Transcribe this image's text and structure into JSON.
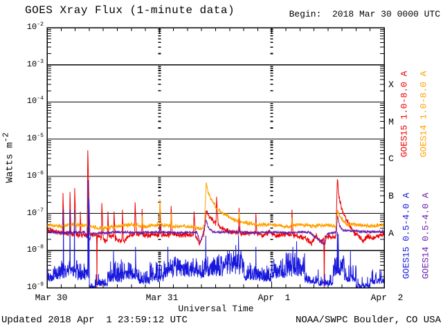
{
  "header": {
    "title": "GOES Xray Flux (1-minute data)",
    "begin_label": "Begin:  2018 Mar 30 0000 UTC"
  },
  "footer": {
    "updated": "Updated 2018 Apr  1 23:59:12 UTC",
    "source": "NOAA/SWPC Boulder, CO USA"
  },
  "colors": {
    "frame": "#000000",
    "background": "#ffffff",
    "goes15_long": "#ee0000",
    "goes14_long": "#ffa000",
    "goes15_short": "#1818dd",
    "goes14_short": "#691eaa"
  },
  "chart_data": {
    "type": "line",
    "title": "GOES Xray Flux (1-minute data)",
    "xlabel": "Universal Time",
    "ylabel": {
      "text": "Watts m",
      "exp": "-2"
    },
    "x_range_hours": [
      0,
      72
    ],
    "x_minor_tick_hours": 3,
    "y_log_range": [
      -9,
      -2
    ],
    "grid": {
      "horizontal_decade_lines": true,
      "vertical_day_lines": "log-dashed"
    },
    "legend_position": "right-rotated",
    "y_ticks": [
      {
        "base": "10",
        "exp": "-2"
      },
      {
        "base": "10",
        "exp": "-3"
      },
      {
        "base": "10",
        "exp": "-4"
      },
      {
        "base": "10",
        "exp": "-5"
      },
      {
        "base": "10",
        "exp": "-6"
      },
      {
        "base": "10",
        "exp": "-7"
      },
      {
        "base": "10",
        "exp": "-8"
      },
      {
        "base": "10",
        "exp": "-9"
      }
    ],
    "x_ticks": [
      {
        "label": "Mar 30",
        "hour": 0
      },
      {
        "label": "Mar 31",
        "hour": 24
      },
      {
        "label": "Apr  1",
        "hour": 48
      },
      {
        "label": "Apr  2",
        "hour": 72
      }
    ],
    "flux_classes": [
      {
        "label": "X",
        "log_center": -3.5
      },
      {
        "label": "M",
        "log_center": -4.5
      },
      {
        "label": "C",
        "log_center": -5.5
      },
      {
        "label": "B",
        "log_center": -6.5
      },
      {
        "label": "A",
        "log_center": -7.5
      }
    ],
    "series": [
      {
        "name": "GOES15 1.0-8.0 A",
        "color": "#ee0000",
        "kind": "keypoint",
        "noise_log": 0.09,
        "baseline": [
          [
            0,
            -7.45
          ],
          [
            2,
            -7.5
          ],
          [
            5,
            -7.55
          ],
          [
            8,
            -7.6
          ],
          [
            9.5,
            -7.55
          ],
          [
            11,
            -7.6
          ],
          [
            12.5,
            -7.75
          ],
          [
            13.5,
            -7.6
          ],
          [
            15,
            -7.7
          ],
          [
            16.5,
            -7.75
          ],
          [
            17.5,
            -7.6
          ],
          [
            19,
            -7.55
          ],
          [
            21,
            -7.6
          ],
          [
            23,
            -7.55
          ],
          [
            25,
            -7.6
          ],
          [
            27,
            -7.55
          ],
          [
            28.5,
            -7.6
          ],
          [
            30,
            -7.55
          ],
          [
            31.5,
            -7.6
          ],
          [
            32.6,
            -7.8
          ],
          [
            33.3,
            -7.6
          ],
          [
            33.5,
            -7.6
          ],
          [
            34.0,
            -6.97
          ],
          [
            35,
            -7.15
          ],
          [
            36.5,
            -7.3
          ],
          [
            38,
            -7.45
          ],
          [
            40,
            -7.5
          ],
          [
            42,
            -7.55
          ],
          [
            44,
            -7.5
          ],
          [
            46,
            -7.6
          ],
          [
            47.5,
            -7.5
          ],
          [
            49,
            -7.6
          ],
          [
            51,
            -7.55
          ],
          [
            53,
            -7.6
          ],
          [
            55,
            -7.65
          ],
          [
            56.5,
            -7.8
          ],
          [
            57.5,
            -7.6
          ],
          [
            58.5,
            -7.75
          ],
          [
            60,
            -7.6
          ],
          [
            61,
            -7.65
          ],
          [
            61.7,
            -7.6
          ],
          [
            62.0,
            -6.03
          ],
          [
            62.3,
            -6.5
          ],
          [
            62.8,
            -6.8
          ],
          [
            63.5,
            -7.05
          ],
          [
            64.5,
            -7.3
          ],
          [
            65.5,
            -7.5
          ],
          [
            66.5,
            -7.6
          ],
          [
            67.5,
            -7.75
          ],
          [
            68.5,
            -7.6
          ],
          [
            69.5,
            -7.7
          ],
          [
            70.5,
            -7.6
          ],
          [
            72,
            -7.55
          ]
        ],
        "events": [
          [
            3.4,
            -6.45,
            0.1,
            0.25
          ],
          [
            4.9,
            -6.42,
            0.1,
            0.2
          ],
          [
            5.9,
            -6.32,
            0.1,
            0.3
          ],
          [
            7.1,
            -6.95,
            0.08,
            0.15
          ],
          [
            8.7,
            -5.3,
            0.15,
            0.45
          ],
          [
            10.65,
            -9.0,
            0.06,
            0.06
          ],
          [
            11.7,
            -6.72,
            0.1,
            0.3
          ],
          [
            13.0,
            -6.95,
            0.08,
            0.2
          ],
          [
            14.3,
            -6.95,
            0.1,
            0.25
          ],
          [
            16.1,
            -6.9,
            0.08,
            0.2
          ],
          [
            18.8,
            -6.7,
            0.1,
            0.3
          ],
          [
            20.3,
            -6.88,
            0.08,
            0.2
          ],
          [
            24.1,
            -6.65,
            0.12,
            0.3
          ],
          [
            26.5,
            -6.8,
            0.1,
            0.25
          ],
          [
            31.4,
            -6.95,
            0.15,
            0.3
          ],
          [
            36.2,
            -6.55,
            0.1,
            0.35
          ],
          [
            41.0,
            -6.85,
            0.1,
            0.25
          ],
          [
            44.6,
            -7.0,
            0.08,
            0.2
          ],
          [
            52.3,
            -6.9,
            0.1,
            0.25
          ],
          [
            59.2,
            -9.0,
            0.08,
            0.08
          ]
        ]
      },
      {
        "name": "GOES14 1.0-8.0 A",
        "color": "#ffa000",
        "kind": "keypoint",
        "noise_log": 0.07,
        "baseline": [
          [
            0,
            -7.3
          ],
          [
            3,
            -7.35
          ],
          [
            6,
            -7.3
          ],
          [
            9,
            -7.35
          ],
          [
            12,
            -7.4
          ],
          [
            15,
            -7.35
          ],
          [
            18,
            -7.3
          ],
          [
            21,
            -7.35
          ],
          [
            24,
            -7.3
          ],
          [
            27,
            -7.35
          ],
          [
            30,
            -7.35
          ],
          [
            33.0,
            -7.4
          ],
          [
            33.6,
            -7.3
          ],
          [
            34.0,
            -6.17
          ],
          [
            34.4,
            -6.45
          ],
          [
            35.2,
            -6.65
          ],
          [
            36.2,
            -6.85
          ],
          [
            37.5,
            -7.0
          ],
          [
            39,
            -7.1
          ],
          [
            40.5,
            -7.2
          ],
          [
            42,
            -7.25
          ],
          [
            45,
            -7.3
          ],
          [
            48,
            -7.3
          ],
          [
            51,
            -7.35
          ],
          [
            54,
            -7.3
          ],
          [
            57,
            -7.35
          ],
          [
            60,
            -7.3
          ],
          [
            61.7,
            -7.35
          ],
          [
            62.05,
            -6.92
          ],
          [
            62.5,
            -7.05
          ],
          [
            63.2,
            -7.2
          ],
          [
            64,
            -7.3
          ],
          [
            66,
            -7.3
          ],
          [
            69,
            -7.35
          ],
          [
            72,
            -7.3
          ]
        ],
        "events": [
          [
            5.9,
            -6.95,
            0.08,
            0.2
          ],
          [
            8.7,
            -6.85,
            0.1,
            0.3
          ],
          [
            20.3,
            -7.05,
            0.08,
            0.15
          ],
          [
            24.1,
            -6.62,
            0.1,
            0.25
          ],
          [
            26.5,
            -6.98,
            0.08,
            0.2
          ],
          [
            41.0,
            -6.95,
            0.08,
            0.2
          ],
          [
            52.3,
            -7.1,
            0.08,
            0.15
          ]
        ]
      },
      {
        "name": "GOES15 0.5-4.0 A",
        "color": "#1818dd",
        "kind": "noise_floor",
        "segments": [
          [
            0,
            1.5,
            -8.85,
            0.15,
            0.25,
            -8.45
          ],
          [
            1.5,
            3,
            -8.8,
            0.18,
            0.3,
            -8.3
          ],
          [
            3,
            6.5,
            -8.75,
            0.2,
            0.35,
            -8.2
          ],
          [
            6.5,
            9,
            -8.8,
            0.18,
            0.3,
            -8.35
          ],
          [
            9,
            10.5,
            -9.0,
            0.06,
            0.08,
            -8.75
          ],
          [
            10.5,
            13,
            -8.95,
            0.1,
            0.12,
            -8.6
          ],
          [
            13,
            16,
            -8.85,
            0.15,
            0.3,
            -8.2
          ],
          [
            16,
            19.5,
            -8.8,
            0.18,
            0.35,
            -8.3
          ],
          [
            19.5,
            22,
            -8.9,
            0.12,
            0.2,
            -8.5
          ],
          [
            22,
            25,
            -8.85,
            0.15,
            0.3,
            -8.3
          ],
          [
            25,
            27,
            -8.75,
            0.2,
            0.4,
            -8.1
          ],
          [
            27,
            31,
            -8.7,
            0.2,
            0.45,
            -8.15
          ],
          [
            31,
            34,
            -8.75,
            0.2,
            0.4,
            -8.2
          ],
          [
            34,
            38,
            -8.7,
            0.22,
            0.45,
            -8.1
          ],
          [
            38,
            42,
            -8.65,
            0.22,
            0.5,
            -8.0
          ],
          [
            42,
            45,
            -8.8,
            0.18,
            0.3,
            -8.3
          ],
          [
            45,
            48,
            -8.85,
            0.15,
            0.25,
            -8.4
          ],
          [
            48,
            51,
            -8.75,
            0.2,
            0.4,
            -8.2
          ],
          [
            51,
            55,
            -8.7,
            0.22,
            0.45,
            -8.05
          ],
          [
            55,
            58,
            -8.9,
            0.12,
            0.18,
            -8.5
          ],
          [
            58,
            61,
            -8.95,
            0.1,
            0.12,
            -8.6
          ],
          [
            61,
            63.5,
            -8.7,
            0.2,
            0.4,
            -8.1
          ],
          [
            63.5,
            66,
            -8.85,
            0.15,
            0.25,
            -8.35
          ],
          [
            66,
            69,
            -9.0,
            0.07,
            0.08,
            -8.7
          ],
          [
            69,
            72,
            -8.9,
            0.12,
            0.15,
            -8.5
          ]
        ],
        "events": [
          [
            3.5,
            -6.9,
            0.05,
            0.05
          ],
          [
            4.9,
            -6.9,
            0.05,
            0.05
          ],
          [
            5.85,
            -6.9,
            0.05,
            0.05
          ],
          [
            8.75,
            -6.1,
            0.06,
            0.08
          ],
          [
            8.95,
            -6.6,
            0.04,
            0.05
          ],
          [
            14.2,
            -8.0,
            0.05,
            0.1
          ],
          [
            18.9,
            -7.9,
            0.05,
            0.1
          ],
          [
            25.8,
            -7.9,
            0.05,
            0.08
          ],
          [
            33.9,
            -7.6,
            0.05,
            0.08
          ],
          [
            40.3,
            -7.85,
            0.05,
            0.08
          ],
          [
            40.9,
            -7.6,
            0.05,
            0.08
          ],
          [
            44.6,
            -7.9,
            0.04,
            0.06
          ],
          [
            52.5,
            -7.9,
            0.05,
            0.08
          ],
          [
            53.3,
            -7.75,
            0.04,
            0.06
          ],
          [
            62.0,
            -7.5,
            0.05,
            0.06
          ],
          [
            62.2,
            -7.55,
            0.04,
            0.05
          ],
          [
            64.8,
            -8.0,
            0.04,
            0.06
          ]
        ]
      },
      {
        "name": "GOES14 0.5-4.0 A",
        "color": "#691eaa",
        "kind": "keypoint",
        "noise_log": 0.045,
        "baseline": [
          [
            0,
            -7.5
          ],
          [
            4,
            -7.52
          ],
          [
            8,
            -7.5
          ],
          [
            8.9,
            -7.75
          ],
          [
            9.6,
            -7.55
          ],
          [
            12,
            -7.52
          ],
          [
            16,
            -7.5
          ],
          [
            20,
            -7.52
          ],
          [
            24,
            -7.5
          ],
          [
            28,
            -7.52
          ],
          [
            32,
            -7.5
          ],
          [
            32.7,
            -7.78
          ],
          [
            33.3,
            -7.55
          ],
          [
            33.95,
            -7.17
          ],
          [
            34.5,
            -7.4
          ],
          [
            35.5,
            -7.5
          ],
          [
            40,
            -7.5
          ],
          [
            44,
            -7.52
          ],
          [
            48,
            -7.5
          ],
          [
            52,
            -7.52
          ],
          [
            56,
            -7.5
          ],
          [
            59.3,
            -7.85
          ],
          [
            59.8,
            -7.55
          ],
          [
            61.8,
            -7.5
          ],
          [
            62.05,
            -7.05
          ],
          [
            62.5,
            -7.35
          ],
          [
            63.2,
            -7.45
          ],
          [
            66,
            -7.48
          ],
          [
            69,
            -7.5
          ],
          [
            72,
            -7.48
          ]
        ],
        "events": [
          [
            8.7,
            -7.25,
            0.08,
            0.15
          ],
          [
            24.1,
            -7.3,
            0.08,
            0.15
          ],
          [
            41.0,
            -7.35,
            0.06,
            0.12
          ]
        ]
      }
    ]
  }
}
